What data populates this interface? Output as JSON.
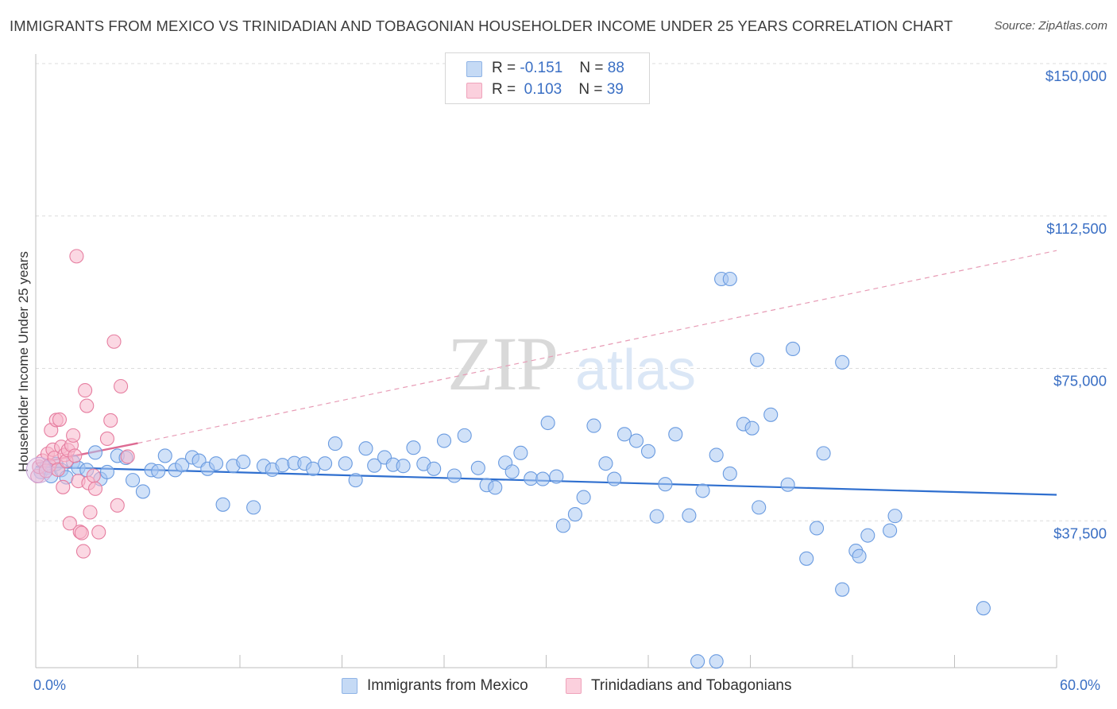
{
  "title": "IMMIGRANTS FROM MEXICO VS TRINIDADIAN AND TOBAGONIAN HOUSEHOLDER INCOME UNDER 25 YEARS CORRELATION CHART",
  "source": "Source: ZipAtlas.com",
  "watermark": {
    "zip": "ZIP",
    "atlas": "atlas"
  },
  "legend": {
    "series": [
      {
        "r_label": "R =",
        "r_value": "-0.151",
        "n_label": "N =",
        "n_value": "88",
        "color": "#a9c9f2"
      },
      {
        "r_label": "R =",
        "r_value": "0.103",
        "n_label": "N =",
        "n_value": "39",
        "color": "#f7b8cc"
      }
    ]
  },
  "bottom_legend": [
    "Immigrants from Mexico",
    "Trinidadians and Tobagonians"
  ],
  "x_tick_labels": {
    "left": "0.0%",
    "right": "60.0%"
  },
  "chart_data": {
    "type": "scatter",
    "title": "IMMIGRANTS FROM MEXICO VS TRINIDADIAN AND TOBAGONIAN HOUSEHOLDER INCOME UNDER 25 YEARS CORRELATION CHART",
    "xlabel": "",
    "ylabel": "Householder Income Under 25 years",
    "xlim": [
      0,
      60
    ],
    "ylim": [
      0,
      155000
    ],
    "y_ticks": [
      {
        "value": 37500,
        "label": "$37,500"
      },
      {
        "value": 75000,
        "label": "$75,000"
      },
      {
        "value": 112500,
        "label": "$112,500"
      },
      {
        "value": 150000,
        "label": "$150,000"
      }
    ],
    "grid": "horizontal dashed",
    "legend_position": "top-center",
    "series": [
      {
        "name": "Immigrants from Mexico",
        "color": "#6a9be0",
        "fill": "#a9c9f2",
        "r": -0.151,
        "n": 88,
        "trend": {
          "x0": 0,
          "y0": 50800,
          "x1": 60,
          "y1": 43900,
          "style": "solid"
        },
        "points": [
          [
            0.3,
            49500
          ],
          [
            0.6,
            50500
          ],
          [
            0.9,
            48500
          ],
          [
            1.2,
            51500
          ],
          [
            1.5,
            50000
          ],
          [
            1.8,
            48200
          ],
          [
            2.2,
            52000
          ],
          [
            2.5,
            50500
          ],
          [
            3.0,
            50000
          ],
          [
            3.5,
            54300
          ],
          [
            3.8,
            47800
          ],
          [
            4.2,
            49500
          ],
          [
            4.8,
            53500
          ],
          [
            5.3,
            53000
          ],
          [
            5.7,
            47500
          ],
          [
            6.3,
            44700
          ],
          [
            6.8,
            50000
          ],
          [
            7.2,
            49700
          ],
          [
            7.6,
            53500
          ],
          [
            8.2,
            50000
          ],
          [
            8.6,
            51200
          ],
          [
            9.2,
            53100
          ],
          [
            9.6,
            52300
          ],
          [
            10.1,
            50300
          ],
          [
            10.6,
            51600
          ],
          [
            11.0,
            41500
          ],
          [
            11.6,
            51000
          ],
          [
            12.2,
            52000
          ],
          [
            12.8,
            40800
          ],
          [
            13.4,
            51000
          ],
          [
            13.9,
            50100
          ],
          [
            14.5,
            51200
          ],
          [
            15.2,
            51700
          ],
          [
            15.8,
            51600
          ],
          [
            16.3,
            50300
          ],
          [
            17.0,
            51600
          ],
          [
            17.6,
            56500
          ],
          [
            18.2,
            51600
          ],
          [
            18.8,
            47500
          ],
          [
            19.4,
            55300
          ],
          [
            19.9,
            51100
          ],
          [
            20.5,
            53100
          ],
          [
            21.0,
            51300
          ],
          [
            21.6,
            51000
          ],
          [
            22.2,
            55500
          ],
          [
            22.8,
            51500
          ],
          [
            23.4,
            50300
          ],
          [
            24.0,
            57200
          ],
          [
            24.6,
            48600
          ],
          [
            25.2,
            58500
          ],
          [
            26.0,
            50500
          ],
          [
            26.5,
            46300
          ],
          [
            27.0,
            45700
          ],
          [
            27.6,
            51800
          ],
          [
            28.0,
            49600
          ],
          [
            28.5,
            54200
          ],
          [
            29.1,
            47900
          ],
          [
            29.8,
            47800
          ],
          [
            30.1,
            61600
          ],
          [
            30.6,
            48400
          ],
          [
            31.0,
            36300
          ],
          [
            31.7,
            39100
          ],
          [
            32.2,
            43300
          ],
          [
            32.8,
            60900
          ],
          [
            33.5,
            51600
          ],
          [
            34.0,
            47800
          ],
          [
            34.6,
            58800
          ],
          [
            35.3,
            57200
          ],
          [
            36.0,
            54600
          ],
          [
            36.5,
            38600
          ],
          [
            37.0,
            46500
          ],
          [
            37.6,
            58800
          ],
          [
            38.4,
            38800
          ],
          [
            39.2,
            44900
          ],
          [
            40.0,
            53700
          ],
          [
            40.8,
            49100
          ],
          [
            41.6,
            61300
          ],
          [
            42.1,
            60300
          ],
          [
            42.5,
            40800
          ],
          [
            43.2,
            63600
          ],
          [
            44.2,
            46400
          ],
          [
            44.5,
            79800
          ],
          [
            45.3,
            28200
          ],
          [
            46.3,
            54100
          ],
          [
            47.4,
            76500
          ],
          [
            48.2,
            30100
          ],
          [
            48.9,
            33900
          ],
          [
            50.2,
            35100
          ]
        ]
      },
      {
        "name": "Trinidadians and Tobagonians",
        "color": "#e67ea0",
        "fill": "#f7b8cc",
        "r": 0.103,
        "n": 39,
        "trend": {
          "x0": 0,
          "y0": 51600,
          "x1": 6,
          "y1": 56600,
          "style": "solid"
        },
        "trend_ext": {
          "x0": 6,
          "y0": 56600,
          "x1": 60,
          "y1": 104000,
          "style": "dashed"
        },
        "points": [
          [
            0.1,
            48500
          ],
          [
            0.2,
            50800
          ],
          [
            0.4,
            52300
          ],
          [
            0.6,
            49800
          ],
          [
            0.7,
            54000
          ],
          [
            0.8,
            51100
          ],
          [
            0.9,
            59800
          ],
          [
            1.0,
            55000
          ],
          [
            1.1,
            53000
          ],
          [
            1.2,
            62300
          ],
          [
            1.3,
            50100
          ],
          [
            1.4,
            62400
          ],
          [
            1.5,
            55700
          ],
          [
            1.6,
            45800
          ],
          [
            1.7,
            53700
          ],
          [
            1.8,
            52200
          ],
          [
            1.9,
            54900
          ],
          [
            2.0,
            36900
          ],
          [
            2.1,
            56100
          ],
          [
            2.2,
            58500
          ],
          [
            2.3,
            53500
          ],
          [
            2.4,
            102600
          ],
          [
            2.5,
            47300
          ],
          [
            2.6,
            34800
          ],
          [
            2.7,
            34500
          ],
          [
            2.8,
            30000
          ],
          [
            2.9,
            69600
          ],
          [
            3.0,
            65800
          ],
          [
            3.1,
            46800
          ],
          [
            3.2,
            39600
          ],
          [
            3.4,
            48600
          ],
          [
            3.5,
            45400
          ],
          [
            3.7,
            34700
          ],
          [
            4.2,
            57700
          ],
          [
            4.4,
            62200
          ],
          [
            4.6,
            81600
          ],
          [
            4.8,
            41300
          ],
          [
            5.0,
            70600
          ],
          [
            5.4,
            53300
          ]
        ]
      }
    ],
    "extra_mexico_points": [
      [
        40.3,
        97000
      ],
      [
        40.8,
        97000
      ],
      [
        42.4,
        77100
      ],
      [
        45.9,
        35700
      ],
      [
        47.4,
        20600
      ],
      [
        48.4,
        28800
      ],
      [
        50.5,
        38700
      ],
      [
        55.7,
        16000
      ],
      [
        38.9,
        2900
      ],
      [
        40.0,
        2900
      ]
    ]
  }
}
